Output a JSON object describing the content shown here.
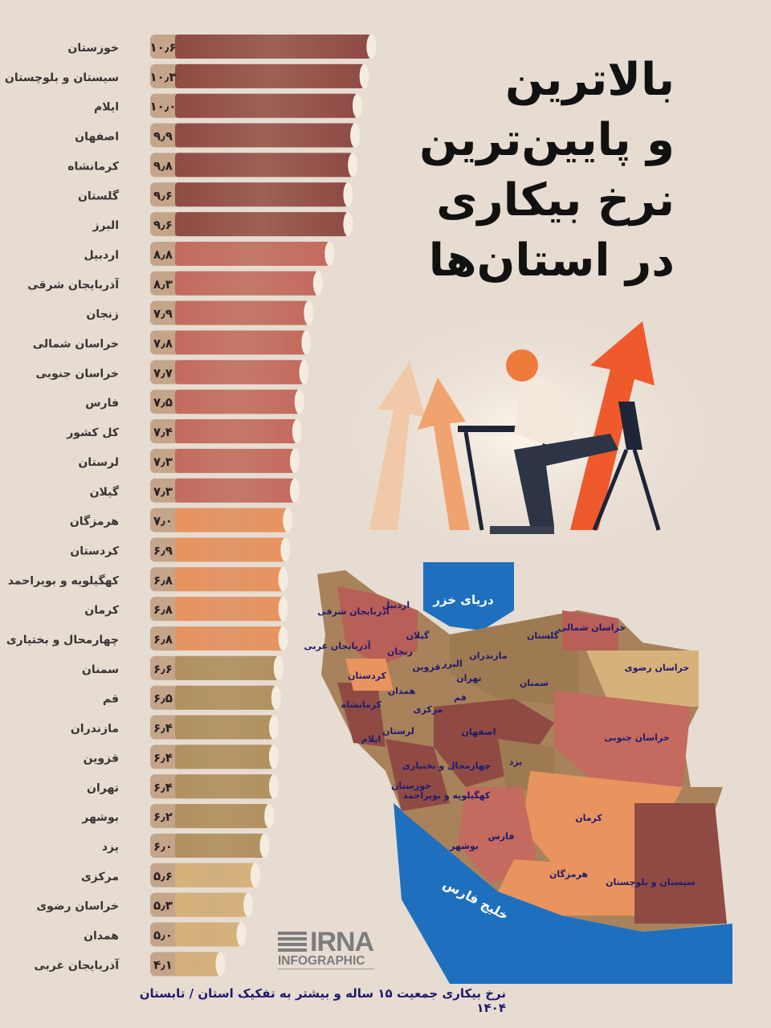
{
  "title_lines": [
    "بالاترین",
    "و پایین‌ترین",
    "نرخ بیکاری",
    "در استان‌ها"
  ],
  "footer": "نرخ بیکاری جمعیت ۱۵ ساله و بیشتر به تفکیک استان / تابستان ۱۴۰۴",
  "logo": {
    "name": "IRNA",
    "sub": "INFOGRAPHIC"
  },
  "colors": {
    "background": "#e6dcd1",
    "value_box": "#c4a58a",
    "tier1": "#8f4a44",
    "tier2": "#c46a5e",
    "tier3": "#e9935e",
    "tier4": "#b0915e",
    "tier5": "#d6b27a",
    "sea": "#1f6fbf"
  },
  "chart_data": {
    "type": "bar",
    "orientation": "horizontal",
    "categories": [
      "خوزستان",
      "سیستان و بلوچستان",
      "ایلام",
      "اصفهان",
      "کرمانشاه",
      "گلستان",
      "البرز",
      "اردبیل",
      "آذربایجان شرقی",
      "زنجان",
      "خراسان شمالی",
      "خراسان جنوبی",
      "فارس",
      "کل کشور",
      "لرستان",
      "گیلان",
      "هرمزگان",
      "کردستان",
      "کهگیلویه و بویراحمد",
      "کرمان",
      "چهارمحال و بختیاری",
      "سمنان",
      "قم",
      "مازندران",
      "قزوین",
      "تهران",
      "بوشهر",
      "یزد",
      "مرکزی",
      "خراسان رضوی",
      "همدان",
      "آذربایجان غربی"
    ],
    "values": [
      10.6,
      10.3,
      10.0,
      9.9,
      9.8,
      9.6,
      9.6,
      8.8,
      8.3,
      7.9,
      7.8,
      7.7,
      7.5,
      7.4,
      7.3,
      7.3,
      7.0,
      6.9,
      6.8,
      6.8,
      6.8,
      6.6,
      6.5,
      6.4,
      6.4,
      6.4,
      6.2,
      6.0,
      5.6,
      5.3,
      5.0,
      4.1
    ],
    "value_labels": [
      "۱۰٫۶",
      "۱۰٫۳",
      "۱۰٫۰",
      "۹٫۹",
      "۹٫۸",
      "۹٫۶",
      "۹٫۶",
      "۸٫۸",
      "۸٫۳",
      "۷٫۹",
      "۷٫۸",
      "۷٫۷",
      "۷٫۵",
      "۷٫۴",
      "۷٫۳",
      "۷٫۳",
      "۷٫۰",
      "۶٫۹",
      "۶٫۸",
      "۶٫۸",
      "۶٫۸",
      "۶٫۶",
      "۶٫۵",
      "۶٫۴",
      "۶٫۴",
      "۶٫۴",
      "۶٫۲",
      "۶٫۰",
      "۵٫۶",
      "۵٫۳",
      "۵٫۰",
      "۴٫۱"
    ],
    "tiers": [
      1,
      1,
      1,
      1,
      1,
      1,
      1,
      2,
      2,
      2,
      2,
      2,
      2,
      2,
      2,
      2,
      3,
      3,
      3,
      3,
      3,
      4,
      4,
      4,
      4,
      4,
      4,
      4,
      5,
      5,
      5,
      5
    ],
    "unit": "percent"
  },
  "map": {
    "seas": [
      "دریای خزر",
      "خلیج فارس"
    ],
    "provinces": [
      "آذربایجان شرقی",
      "اردبیل",
      "آذربایجان غربی",
      "گیلان",
      "زنجان",
      "مازندران",
      "گلستان",
      "خراسان شمالی",
      "خراسان رضوی",
      "قزوین",
      "البرز",
      "تهران",
      "کردستان",
      "همدان",
      "قم",
      "سمنان",
      "کرمانشاه",
      "مرکزی",
      "لرستان",
      "اصفهان",
      "ایلام",
      "خراسان جنوبی",
      "یزد",
      "چهارمحال و بختیاری",
      "خوزستان",
      "کهگیلویه و بویراحمد",
      "کرمان",
      "فارس",
      "بوشهر",
      "هرمزگان",
      "سیستان و بلوچستان"
    ]
  }
}
